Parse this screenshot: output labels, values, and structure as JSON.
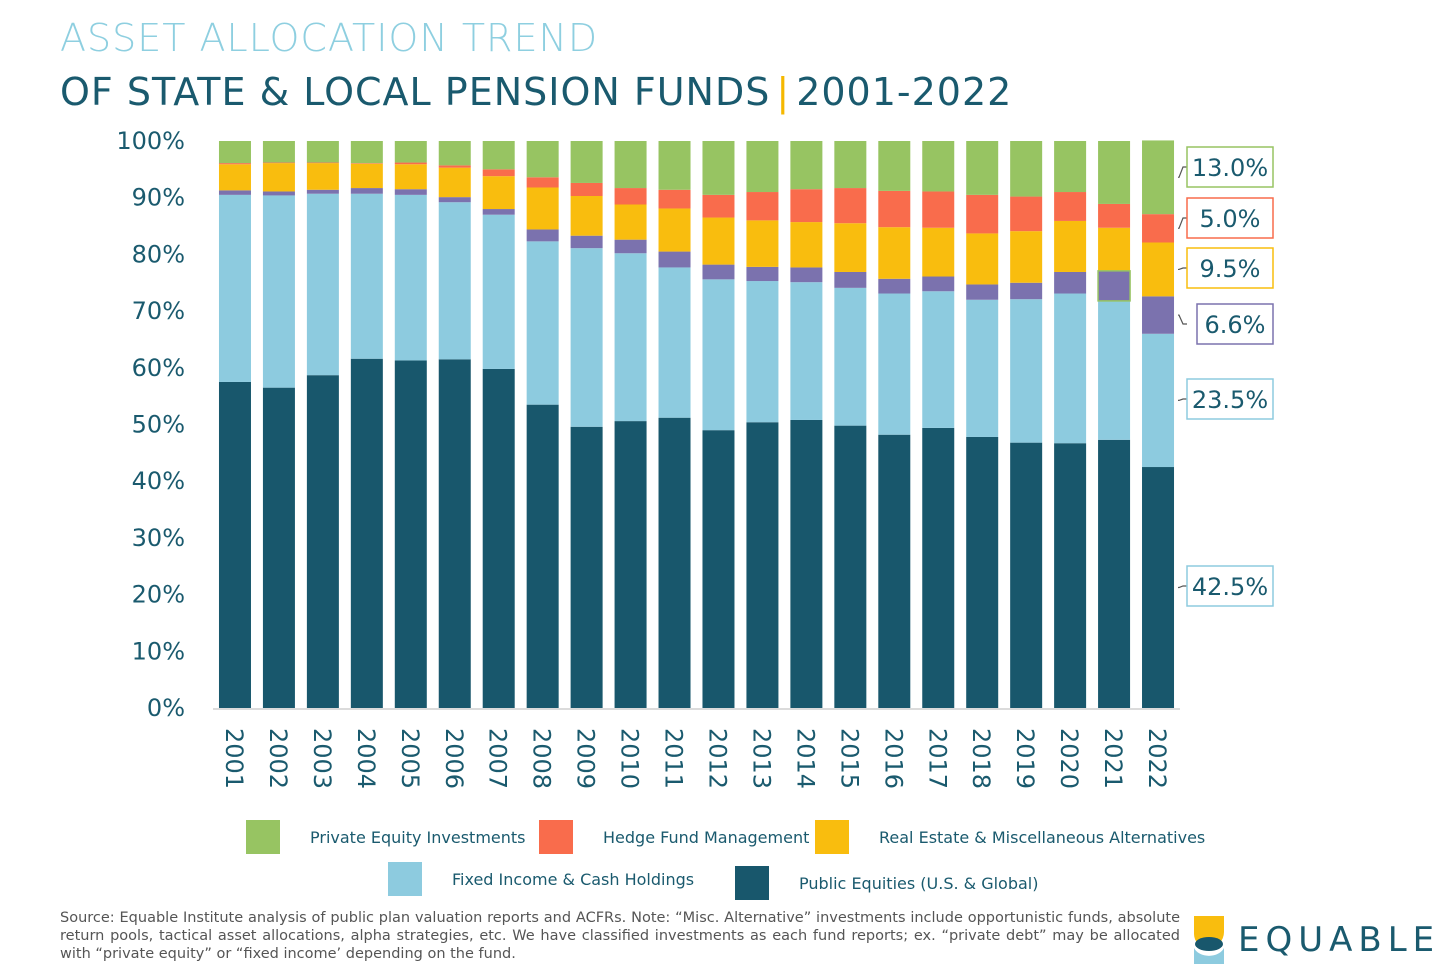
{
  "header": {
    "title_line1": "ASSET ALLOCATION TREND",
    "title_line2_main": "OF STATE & LOCAL PENSION FUNDS",
    "title_line2_sep": "|",
    "title_line2_years": "2001-2022"
  },
  "colors": {
    "private_equity": "#97c462",
    "hedge_fund": "#f96c4c",
    "real_estate": "#f9bd0e",
    "purple": "#7b72ae",
    "fixed_income": "#8dcbdf",
    "public_equities": "#18576c",
    "text_dark": "#1a5a6e"
  },
  "chart_data": {
    "type": "bar",
    "stacked": true,
    "categories": [
      "2001",
      "2002",
      "2003",
      "2004",
      "2005",
      "2006",
      "2007",
      "2008",
      "2009",
      "2010",
      "2011",
      "2012",
      "2013",
      "2014",
      "2015",
      "2016",
      "2017",
      "2018",
      "2019",
      "2020",
      "2021",
      "2022"
    ],
    "yticks": [
      "0%",
      "10%",
      "20%",
      "30%",
      "40%",
      "50%",
      "60%",
      "70%",
      "80%",
      "90%",
      "100%"
    ],
    "ylim": [
      0,
      100
    ],
    "series": [
      {
        "key": "public_equities",
        "name": "Public Equities (U.S. & Global)",
        "color": "#18576c",
        "values": [
          57.5,
          56.5,
          58.7,
          61.6,
          61.3,
          61.5,
          59.8,
          53.5,
          49.6,
          50.6,
          51.2,
          49.0,
          50.4,
          50.8,
          49.8,
          48.2,
          49.4,
          47.8,
          46.8,
          46.7,
          47.3,
          42.5
        ]
      },
      {
        "key": "fixed_income",
        "name": "Fixed Income & Cash Holdings",
        "color": "#8dcbdf",
        "values": [
          33.0,
          33.9,
          32.0,
          29.1,
          29.2,
          27.7,
          27.2,
          28.8,
          31.5,
          29.6,
          26.5,
          26.6,
          24.9,
          24.3,
          24.3,
          24.9,
          24.1,
          24.2,
          25.3,
          26.4,
          24.5,
          23.5
        ]
      },
      {
        "key": "other_alt",
        "name": "",
        "color": "#7b72ae",
        "values": [
          0.8,
          0.7,
          0.7,
          1.0,
          1.0,
          0.9,
          1.0,
          2.1,
          2.2,
          2.4,
          2.8,
          2.6,
          2.5,
          2.6,
          2.8,
          2.6,
          2.6,
          2.7,
          2.9,
          3.8,
          5.3,
          6.6
        ]
      },
      {
        "key": "real_estate",
        "name": "Real Estate & Miscellaneous Alternatives",
        "color": "#f9bd0e",
        "values": [
          4.6,
          5.0,
          4.7,
          4.3,
          4.4,
          5.2,
          5.8,
          7.4,
          7.0,
          6.2,
          7.6,
          8.3,
          8.2,
          8.0,
          8.6,
          9.1,
          8.6,
          9.0,
          9.1,
          9.0,
          7.6,
          9.5
        ]
      },
      {
        "key": "hedge_fund",
        "name": "Hedge Fund Management",
        "color": "#f96c4c",
        "values": [
          0.2,
          0.1,
          0.1,
          0.1,
          0.3,
          0.4,
          1.2,
          1.8,
          2.3,
          2.9,
          3.3,
          4.0,
          5.0,
          5.8,
          6.2,
          6.4,
          6.4,
          6.8,
          6.1,
          5.1,
          4.2,
          5.0
        ]
      },
      {
        "key": "private_equity",
        "name": "Private Equity Investments",
        "color": "#97c462",
        "values": [
          3.9,
          3.8,
          3.8,
          3.9,
          3.8,
          4.3,
          5.0,
          6.4,
          7.4,
          8.3,
          8.6,
          9.5,
          9.0,
          8.5,
          8.3,
          8.8,
          8.9,
          9.5,
          9.8,
          9.0,
          11.1,
          13.0
        ]
      }
    ],
    "callouts": [
      {
        "label": "13.0%",
        "series": "private_equity",
        "color": "#97c462"
      },
      {
        "label": "5.0%",
        "series": "hedge_fund",
        "color": "#f96c4c"
      },
      {
        "label": "9.5%",
        "series": "real_estate",
        "color": "#f9bd0e"
      },
      {
        "label": "6.6%",
        "series": "other_alt",
        "color": "#7b72ae"
      },
      {
        "label": "23.5%",
        "series": "fixed_income",
        "color": "#8dcbdf"
      },
      {
        "label": "42.5%",
        "series": "public_equities",
        "color": "#8dcbdf"
      }
    ],
    "grid": false,
    "legend_position": "bottom"
  },
  "legend": {
    "items": [
      {
        "label": "Private Equity Investments",
        "color": "#97c462"
      },
      {
        "label": "Hedge Fund Management",
        "color": "#f96c4c"
      },
      {
        "label": "Real Estate & Miscellaneous Alternatives",
        "color": "#f9bd0e"
      },
      {
        "label": "Fixed Income & Cash Holdings",
        "color": "#8dcbdf"
      },
      {
        "label": "Public Equities (U.S. & Global)",
        "color": "#18576c"
      }
    ]
  },
  "footer": {
    "source": "Source: Equable Institute analysis of public plan valuation reports and ACFRs. Note: “Misc. Alternative” investments include opportunistic funds, absolute return pools, tactical asset allocations, alpha strategies, etc. We have classified investments as each fund reports; ex. “private debt” may be allocated with “private equity” or “fixed income’ depending on the fund.",
    "logo_text": "EQUABLE"
  }
}
